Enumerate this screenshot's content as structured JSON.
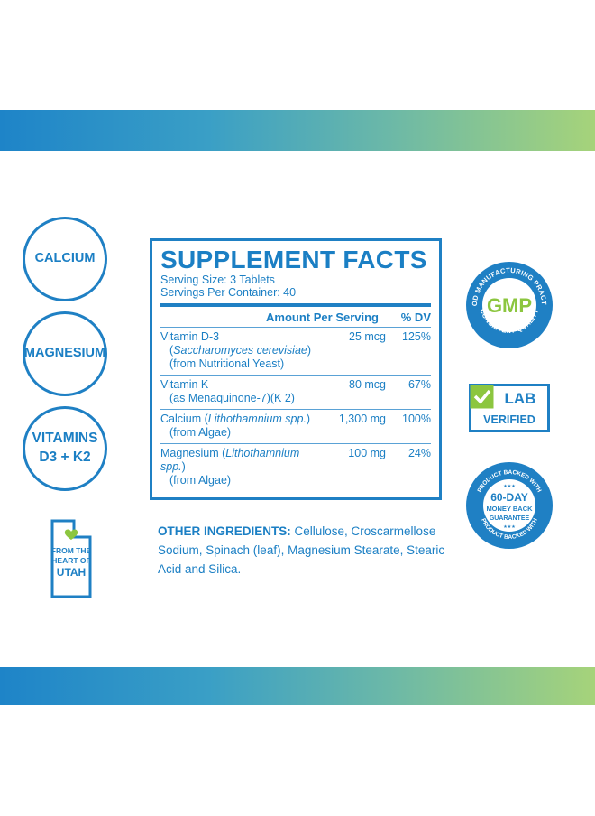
{
  "circles": {
    "calcium": "CALCIUM",
    "magnesium": "MAGNESIUM",
    "vitamins_line1": "VITAMINS",
    "vitamins_line2": "D3 + K2"
  },
  "utah": {
    "line1": "FROM THE",
    "line2": "HEART OF",
    "line3": "UTAH"
  },
  "facts": {
    "title": "SUPPLEMENT FACTS",
    "serving_size": "Serving Size: 3 Tablets",
    "servings_per_container": "Servings Per Container: 40",
    "header_amount": "Amount Per Serving",
    "header_dv": "% DV",
    "rows": [
      {
        "name": "Vitamin D-3",
        "sub1_open": "(",
        "sub1_italic": "Saccharomyces cerevisiae",
        "sub1_close": ")",
        "sub2": "(from Nutritional Yeast)",
        "amount": "25 mcg",
        "dv": "125%"
      },
      {
        "name": "Vitamin K",
        "sub1": "(as Menaquinone-7)(K 2)",
        "amount": "80 mcg",
        "dv": "67%"
      },
      {
        "name_pre": "Calcium (",
        "name_italic": "Lithothamnium spp.",
        "name_post": ")",
        "sub1": "(from Algae)",
        "amount": "1,300 mg",
        "dv": "100%"
      },
      {
        "name_pre": "Magnesium (",
        "name_italic": "Lithothamnium spp.",
        "name_post": ")",
        "sub1": "(from Algae)",
        "amount": "100 mg",
        "dv": "24%"
      }
    ]
  },
  "other_ingredients": {
    "label": "OTHER INGREDIENTS:",
    "text": " Cellulose, Croscarmellose Sodium, Spinach (leaf), Magnesium Stearate, Stearic Acid and Silica."
  },
  "gmp": {
    "center": "GMP",
    "top_arc": "GOOD MANUFACTURING PRACTICE",
    "bottom_arc": "CONSISTENT QUALITY"
  },
  "lab": {
    "line1": "LAB",
    "line2": "VERIFIED"
  },
  "guarantee": {
    "top_arc": "PRODUCT BACKED WITH",
    "bottom_arc": "PRODUCT BACKED WITH",
    "line1": "60-DAY",
    "line2": "MONEY BACK",
    "line3": "GUARANTEE",
    "stars": "★★★"
  },
  "colors": {
    "brand_blue": "#1f80c4",
    "green": "#8cc63f"
  }
}
